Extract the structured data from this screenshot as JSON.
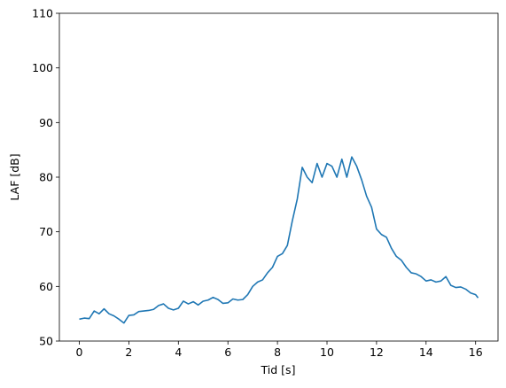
{
  "chart_data": {
    "type": "line",
    "xlabel": "Tid [s]",
    "ylabel": "LAF [dB]",
    "color": "#1f77b4",
    "x": [
      0,
      0.2,
      0.4,
      0.6,
      0.8,
      1.0,
      1.2,
      1.4,
      1.6,
      1.8,
      2.0,
      2.2,
      2.4,
      2.6,
      2.8,
      3.0,
      3.2,
      3.4,
      3.6,
      3.8,
      4.0,
      4.2,
      4.4,
      4.6,
      4.8,
      5.0,
      5.2,
      5.4,
      5.6,
      5.8,
      6.0,
      6.2,
      6.4,
      6.6,
      6.8,
      7.0,
      7.2,
      7.4,
      7.6,
      7.8,
      8.0,
      8.2,
      8.4,
      8.6,
      8.8,
      9.0,
      9.2,
      9.4,
      9.6,
      9.8,
      10.0,
      10.2,
      10.4,
      10.6,
      10.8,
      11.0,
      11.2,
      11.4,
      11.6,
      11.8,
      12.0,
      12.2,
      12.4,
      12.6,
      12.8,
      13.0,
      13.2,
      13.4,
      13.6,
      13.8,
      14.0,
      14.2,
      14.4,
      14.6,
      14.8,
      15.0,
      15.2,
      15.4,
      15.6,
      15.8,
      16.0,
      16.1
    ],
    "values": [
      54.0,
      54.2,
      54.1,
      55.5,
      55.0,
      55.9,
      55.0,
      54.6,
      54.0,
      53.3,
      54.7,
      54.8,
      55.4,
      55.5,
      55.6,
      55.8,
      56.5,
      56.8,
      56.0,
      55.7,
      56.0,
      57.3,
      56.8,
      57.2,
      56.6,
      57.3,
      57.5,
      58.0,
      57.6,
      56.9,
      57.0,
      57.7,
      57.5,
      57.6,
      58.5,
      60.0,
      60.8,
      61.2,
      62.5,
      63.5,
      65.5,
      66.0,
      67.5,
      72.0,
      76.0,
      81.8,
      80.0,
      79.0,
      82.5,
      80.0,
      82.5,
      82.0,
      80.0,
      83.3,
      80.0,
      83.7,
      82.0,
      79.5,
      76.5,
      74.5,
      70.5,
      69.5,
      69.0,
      67.0,
      65.5,
      64.8,
      63.5,
      62.5,
      62.3,
      61.8,
      61.0,
      61.2,
      60.8,
      61.0,
      61.8,
      60.2,
      59.8,
      59.9,
      59.5,
      58.8,
      58.5,
      57.9
    ],
    "xlim": [
      -0.805,
      16.905
    ],
    "xticks": [
      0,
      2,
      4,
      6,
      8,
      10,
      12,
      14,
      16
    ],
    "ylim": [
      50,
      110
    ],
    "yticks": [
      50,
      60,
      70,
      80,
      90,
      100,
      110
    ]
  }
}
